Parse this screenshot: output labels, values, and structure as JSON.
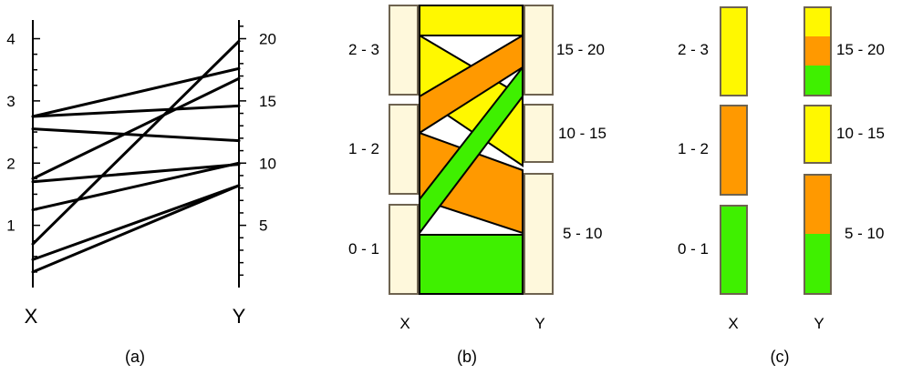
{
  "colors": {
    "yellow": "#FFF800",
    "orange": "#FF9900",
    "green": "#3FF000",
    "axis_box": "#FEF8DC",
    "axis_box_stroke": "#6E6350",
    "line": "#000000"
  },
  "panel_a": {
    "caption": "(a)",
    "x_axis": {
      "name": "X",
      "range": [
        0,
        4.3
      ],
      "ticks": [
        "1",
        "2",
        "3",
        "4"
      ]
    },
    "y_axis": {
      "name": "Y",
      "range": [
        0,
        21.5
      ],
      "ticks": [
        "5",
        "10",
        "15",
        "20"
      ]
    },
    "lines": [
      {
        "x": 2.75,
        "y": 17.6
      },
      {
        "x": 2.75,
        "y": 14.6
      },
      {
        "x": 2.55,
        "y": 11.8
      },
      {
        "x": 1.75,
        "y": 16.8
      },
      {
        "x": 1.7,
        "y": 9.9
      },
      {
        "x": 1.25,
        "y": 10.0
      },
      {
        "x": 0.7,
        "y": 19.8
      },
      {
        "x": 0.45,
        "y": 8.2
      },
      {
        "x": 0.25,
        "y": 8.2
      }
    ]
  },
  "panel_b": {
    "caption": "(b)",
    "x_name": "X",
    "y_name": "Y",
    "x_groups": [
      "2 - 3",
      "1 - 2",
      "0 - 1"
    ],
    "y_groups": [
      "15 - 20",
      "10 - 15",
      "5 - 10"
    ],
    "flows": [
      {
        "from": "2 - 3",
        "to": "15 - 20",
        "color": "yellow"
      },
      {
        "from": "2 - 3",
        "to": "10 - 15",
        "color": "yellow"
      },
      {
        "from": "1 - 2",
        "to": "15 - 20",
        "color": "orange"
      },
      {
        "from": "1 - 2",
        "to": "5 - 10",
        "color": "orange"
      },
      {
        "from": "0 - 1",
        "to": "15 - 20",
        "color": "green"
      },
      {
        "from": "0 - 1",
        "to": "5 - 10",
        "color": "green"
      }
    ]
  },
  "panel_c": {
    "caption": "(c)",
    "x_name": "X",
    "y_name": "Y",
    "x_groups": [
      {
        "label": "2 - 3",
        "color": "yellow"
      },
      {
        "label": "1 - 2",
        "color": "orange"
      },
      {
        "label": "0 - 1",
        "color": "green"
      }
    ],
    "y_groups": [
      {
        "label": "15 - 20",
        "segments": [
          {
            "color": "yellow",
            "share": 1
          },
          {
            "color": "orange",
            "share": 1
          },
          {
            "color": "green",
            "share": 1
          }
        ]
      },
      {
        "label": "10 - 15",
        "segments": [
          {
            "color": "yellow",
            "share": 1
          }
        ]
      },
      {
        "label": "5 - 10",
        "segments": [
          {
            "color": "orange",
            "share": 1
          },
          {
            "color": "green",
            "share": 1
          }
        ]
      }
    ]
  }
}
